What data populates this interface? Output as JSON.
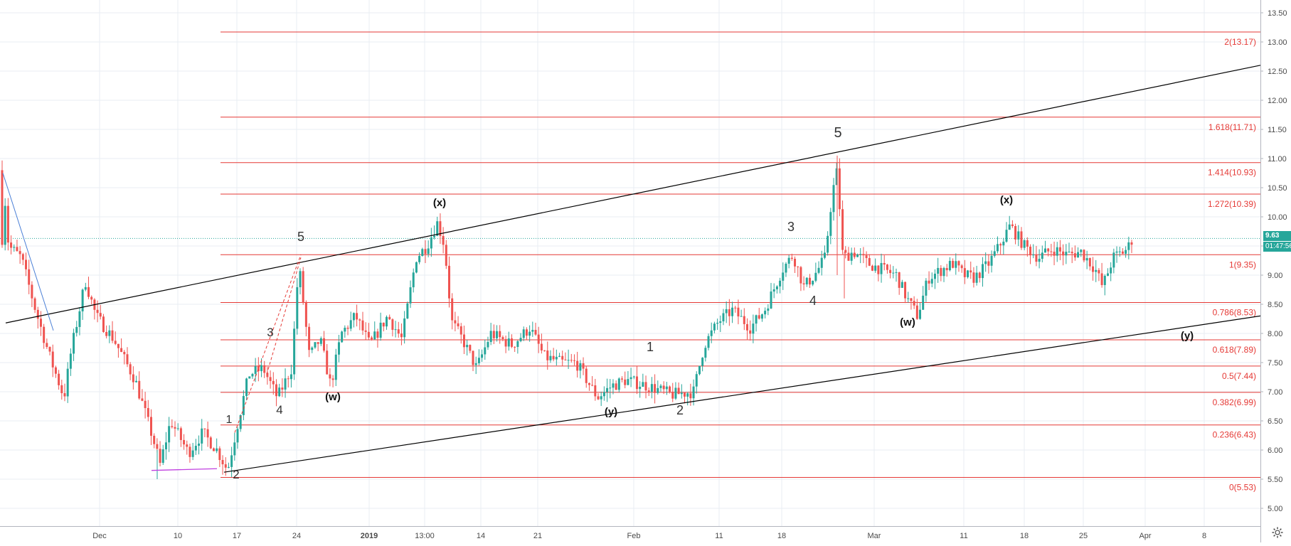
{
  "chart_data": {
    "type": "candlestick",
    "y_axis": {
      "ticks": [
        "13.50",
        "13.00",
        "12.50",
        "12.00",
        "11.50",
        "11.00",
        "10.50",
        "10.00",
        "9.50",
        "9.00",
        "8.50",
        "8.00",
        "7.50",
        "7.00",
        "6.50",
        "6.00",
        "5.50",
        "5.00"
      ],
      "range": [
        4.7,
        13.62
      ]
    },
    "x_axis": {
      "ticks": [
        "Dec",
        "10",
        "17",
        "24",
        "2019",
        "13:00",
        "14",
        "21",
        "Feb",
        "11",
        "18",
        "Mar",
        "11",
        "18",
        "25",
        "Apr",
        "8"
      ],
      "bold": [
        "2019"
      ]
    },
    "current_price": "9.63",
    "countdown": "01:47:56",
    "fib_levels": [
      {
        "ratio": "0",
        "price": 5.53,
        "label": "0(5.53)"
      },
      {
        "ratio": "0.236",
        "price": 6.43,
        "label": "0.236(6.43)"
      },
      {
        "ratio": "0.382",
        "price": 6.99,
        "label": "0.382(6.99)"
      },
      {
        "ratio": "0.5",
        "price": 7.44,
        "label": "0.5(7.44)"
      },
      {
        "ratio": "0.618",
        "price": 7.89,
        "label": "0.618(7.89)"
      },
      {
        "ratio": "0.786",
        "price": 8.53,
        "label": "0.786(8.53)"
      },
      {
        "ratio": "1",
        "price": 9.35,
        "label": "1(9.35)"
      },
      {
        "ratio": "1.272",
        "price": 10.39,
        "label": "1.272(10.39)"
      },
      {
        "ratio": "1.414",
        "price": 10.93,
        "label": "1.414(10.93)"
      },
      {
        "ratio": "1.618",
        "price": 11.71,
        "label": "1.618(11.71)"
      },
      {
        "ratio": "2",
        "price": 13.17,
        "label": "2(13.17)"
      }
    ],
    "wave_labels": [
      "1",
      "2",
      "3",
      "4",
      "5",
      "(w)",
      "(x)",
      "(y)",
      "1",
      "2",
      "3",
      "4",
      "5",
      "(w)",
      "(x)",
      "(y)"
    ],
    "colors": {
      "up": "#26a69a",
      "down": "#ef5350",
      "fib": "#e53935",
      "trendline": "#000000",
      "grid": "#e9eef3",
      "price_line": "#26a69a"
    },
    "candles": {
      "count": 380,
      "start": 10.8,
      "end": 9.63,
      "low": 5.5,
      "high": 11.05
    }
  }
}
